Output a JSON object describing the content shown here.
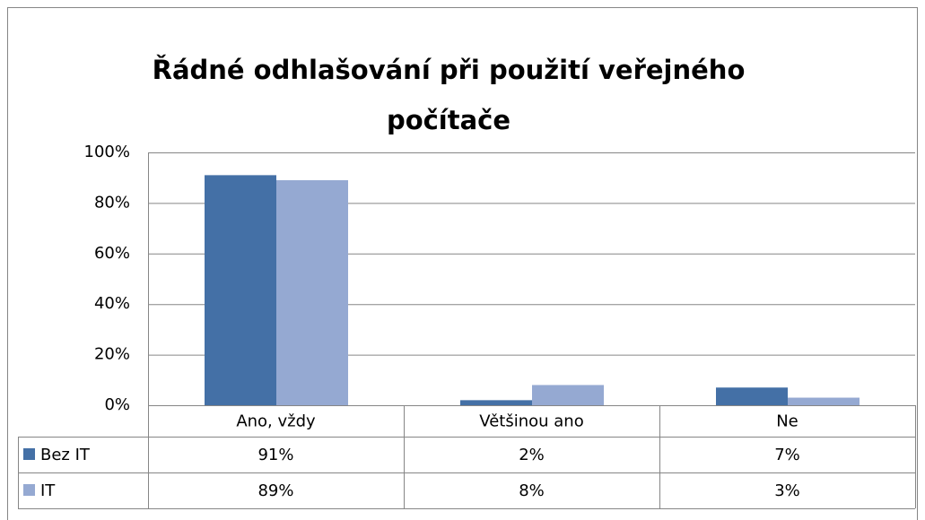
{
  "chart_data": {
    "type": "bar",
    "title": "Řádné odhlašování při použití veřejného počítače",
    "categories": [
      "Ano, vždy",
      "Většinou ano",
      "Ne"
    ],
    "series": [
      {
        "name": "Bez IT",
        "color": "#4470a6",
        "values": [
          91,
          2,
          7
        ],
        "value_labels": [
          "91%",
          "2%",
          "7%"
        ]
      },
      {
        "name": "IT",
        "color": "#95a9d2",
        "values": [
          89,
          8,
          3
        ],
        "value_labels": [
          "89%",
          "8%",
          "3%"
        ]
      }
    ],
    "ylim": [
      0,
      100
    ],
    "yticks": [
      {
        "value": 0,
        "label": "0%"
      },
      {
        "value": 20,
        "label": "20%"
      },
      {
        "value": 40,
        "label": "40%"
      },
      {
        "value": 60,
        "label": "60%"
      },
      {
        "value": 80,
        "label": "80%"
      },
      {
        "value": 100,
        "label": "100%"
      }
    ],
    "grid": true
  }
}
